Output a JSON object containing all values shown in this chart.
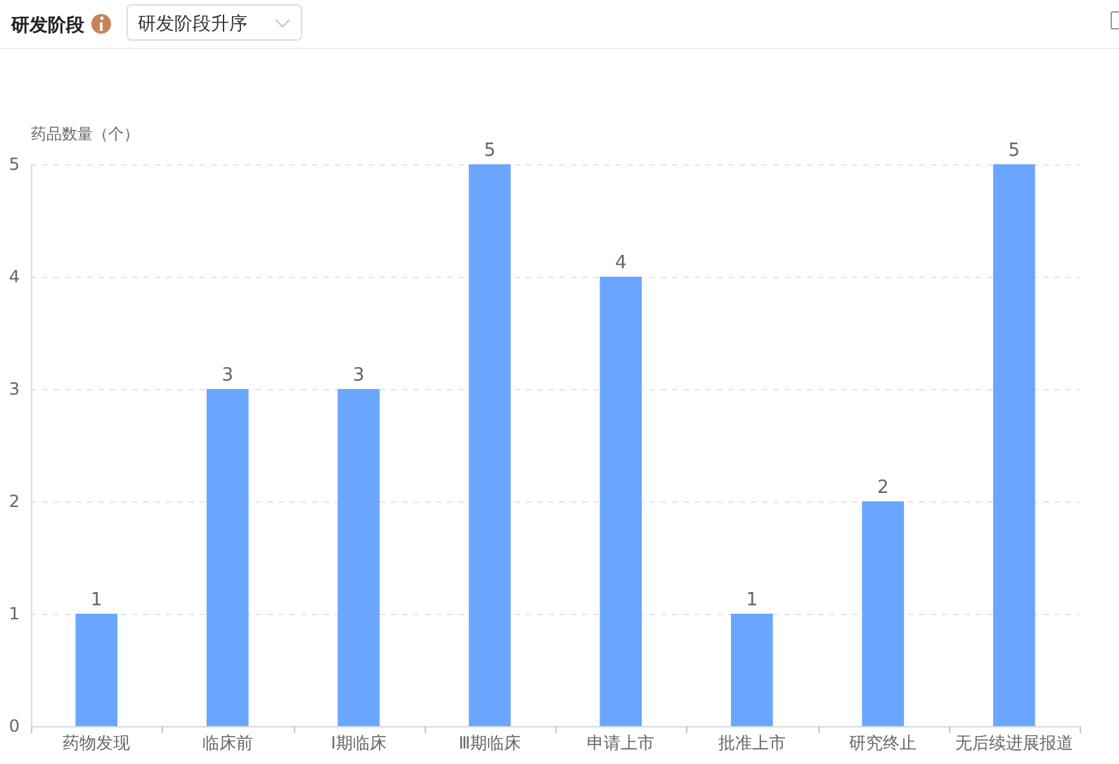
{
  "chart_data": {
    "type": "bar",
    "title": "研发阶段",
    "annotations": [
      "研发阶段升序"
    ],
    "ylabel": "药品数量（个）",
    "categories": [
      "药物发现",
      "临床前",
      "Ⅰ期临床",
      "Ⅲ期临床",
      "申请上市",
      "批准上市",
      "研究终止",
      "无后续进展报道"
    ],
    "values": [
      1,
      3,
      3,
      5,
      4,
      1,
      2,
      5
    ],
    "color": "#6aa6ff",
    "ylim": [
      0,
      5
    ],
    "yticks": [
      0,
      1,
      2,
      3,
      4,
      5
    ],
    "grid": "y",
    "data_labels": true
  }
}
